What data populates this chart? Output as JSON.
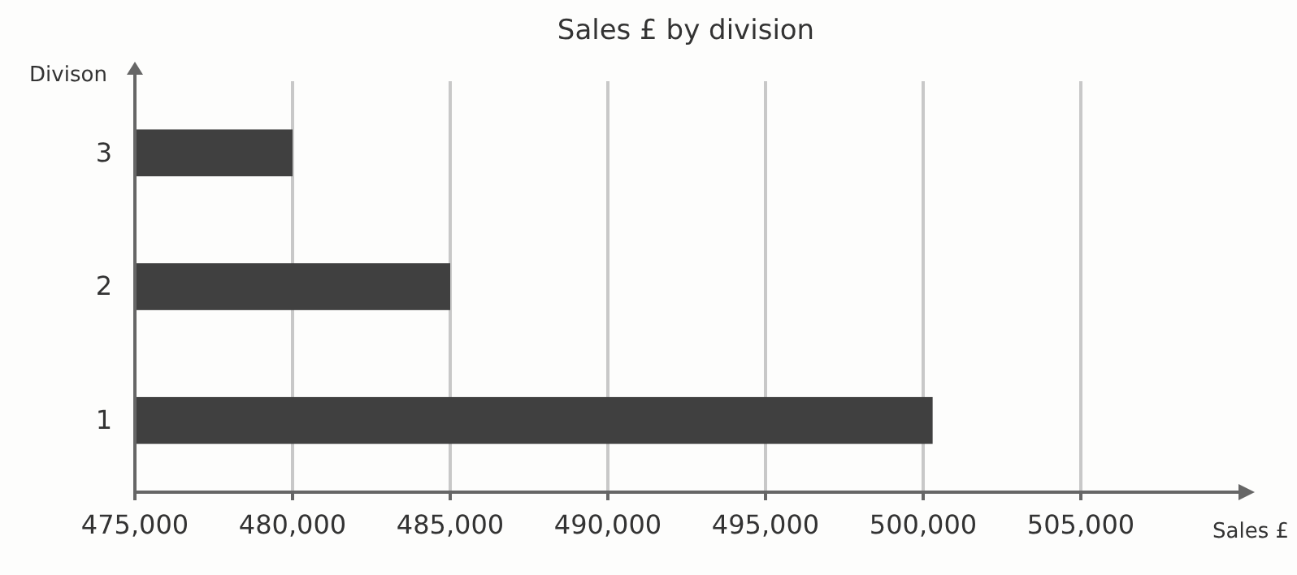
{
  "chart_data": {
    "type": "bar",
    "orientation": "horizontal",
    "title": "Sales £ by division",
    "xlabel": "Sales £",
    "ylabel": "Divison",
    "categories": [
      "3",
      "2",
      "1"
    ],
    "values": [
      480000,
      485000,
      500300
    ],
    "color": "#404040",
    "xlim": [
      475000,
      510000
    ],
    "xticks": [
      {
        "value": 475000,
        "label": "475,000"
      },
      {
        "value": 480000,
        "label": "480,000"
      },
      {
        "value": 485000,
        "label": "485,000"
      },
      {
        "value": 490000,
        "label": "490,000"
      },
      {
        "value": 495000,
        "label": "495,000"
      },
      {
        "value": 500000,
        "label": "500,000"
      },
      {
        "value": 505000,
        "label": "505,000"
      }
    ],
    "grid": "x"
  }
}
